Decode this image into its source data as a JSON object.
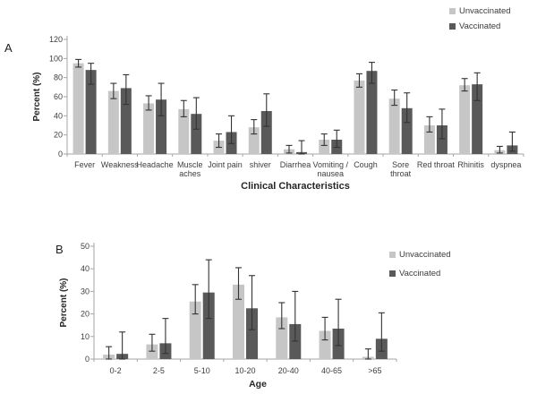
{
  "figure": {
    "panel_a_label": "A",
    "panel_b_label": "B",
    "colors": {
      "unvaccinated": "#c6c6c6",
      "vaccinated": "#595959",
      "error_bar": "#333333",
      "axis": "#a6a6a6",
      "text": "#3d3d3d"
    },
    "legend_a": {
      "unvaccinated": "Unvaccinated",
      "vaccinated": "Vaccinated"
    },
    "legend_b": {
      "unvaccinated": "Unvaccinated",
      "vaccinated": "Vaccinated"
    }
  },
  "chart_data": [
    {
      "id": "clinical",
      "panel": "A",
      "type": "bar",
      "title": "",
      "xlabel": "Clinical Characteristics",
      "ylabel": "Percent (%)",
      "ylim": [
        0,
        120
      ],
      "yticks": [
        0,
        20,
        40,
        60,
        80,
        100,
        120
      ],
      "grid": false,
      "legend_position": "top-right",
      "categories": [
        "Fever",
        "Weakness",
        "Headache",
        "Muscle\naches",
        "Joint pain",
        "shiver",
        "Diarrhea",
        "Vomiting /\nnausea",
        "Cough",
        "Sore\nthroat",
        "Red throat",
        "Rhinitis",
        "dyspnea"
      ],
      "series": [
        {
          "name": "Unvaccinated",
          "values": [
            95,
            66,
            53,
            47,
            14,
            28,
            5,
            15,
            77,
            58,
            30,
            72,
            4
          ],
          "error_low": [
            91,
            58,
            46,
            39,
            7,
            21,
            1,
            9,
            70,
            51,
            23,
            66,
            1
          ],
          "error_high": [
            99,
            74,
            61,
            56,
            21,
            36,
            9,
            21,
            84,
            67,
            39,
            79,
            8
          ]
        },
        {
          "name": "Vaccinated",
          "values": [
            88,
            69,
            57,
            42,
            23,
            45,
            2,
            15,
            87,
            48,
            30,
            73,
            9
          ],
          "error_low": [
            73,
            52,
            40,
            26,
            11,
            29,
            0,
            7,
            74,
            33,
            16,
            56,
            3
          ],
          "error_high": [
            95,
            83,
            74,
            59,
            40,
            63,
            14,
            25,
            96,
            64,
            47,
            85,
            23
          ]
        }
      ]
    },
    {
      "id": "age",
      "panel": "B",
      "type": "bar",
      "title": "",
      "xlabel": "Age",
      "ylabel": "Percent (%)",
      "ylim": [
        0,
        50
      ],
      "yticks": [
        0,
        10,
        20,
        30,
        40,
        50
      ],
      "grid": false,
      "legend_position": "right",
      "categories": [
        "0-2",
        "2-5",
        "5-10",
        "10-20",
        "20-40",
        "40-65",
        ">65"
      ],
      "series": [
        {
          "name": "Unvaccinated",
          "values": [
            2,
            6.5,
            25.5,
            33,
            18.5,
            12.5,
            1
          ],
          "error_low": [
            0,
            3.5,
            20,
            26.5,
            13.5,
            8.5,
            0
          ],
          "error_high": [
            5.5,
            11,
            33,
            40.5,
            25,
            18.5,
            4.5
          ]
        },
        {
          "name": "Vaccinated",
          "values": [
            2.3,
            7,
            29.5,
            22.5,
            15.5,
            13.5,
            9
          ],
          "error_low": [
            0,
            2.5,
            18,
            13,
            8,
            6,
            3.5
          ],
          "error_high": [
            12,
            18,
            44,
            37,
            30,
            26.5,
            20.5
          ]
        }
      ]
    }
  ]
}
